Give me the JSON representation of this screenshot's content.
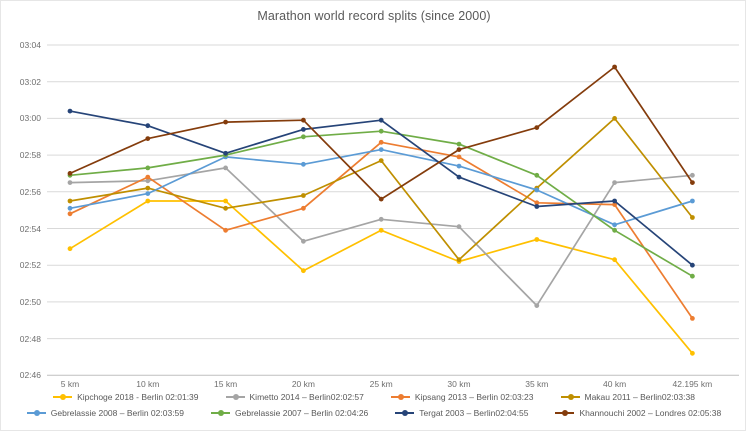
{
  "title": "Marathon world record splits (since 2000)",
  "chart_data": {
    "type": "line",
    "title": "Marathon world record splits (since 2000)",
    "xlabel": "",
    "ylabel": "",
    "y_unit": "mm:ss pace per km",
    "grid": "horizontal",
    "legend_position": "bottom",
    "categories": [
      "5 km",
      "10 km",
      "15 km",
      "20 km",
      "25 km",
      "30 km",
      "35 km",
      "40 km",
      "42.195 km"
    ],
    "y_axis": {
      "tick_labels_top_to_bottom": [
        "03:04",
        "03:02",
        "03:00",
        "02:58",
        "02:56",
        "02:54",
        "02:52",
        "02:50",
        "02:48",
        "02:46"
      ],
      "min_seconds": 166,
      "max_seconds": 184,
      "step_seconds": 2
    },
    "series": [
      {
        "name": "Kipchoge 2018",
        "legend_label": "Kipchoge 2018 - Berlin 02:01:39",
        "color": "#FFC000",
        "values_seconds": [
          172.9,
          175.5,
          175.5,
          171.7,
          173.9,
          172.2,
          173.4,
          172.3,
          167.2
        ],
        "values_mmss": [
          "02:52.9",
          "02:55.5",
          "02:55.5",
          "02:51.7",
          "02:53.9",
          "02:52.2",
          "02:53.4",
          "02:52.3",
          "02:47.2"
        ]
      },
      {
        "name": "Kimetto 2014",
        "legend_label": "Kimetto 2014 – Berlin02:02:57",
        "color": "#A5A5A5",
        "values_seconds": [
          176.5,
          176.6,
          177.3,
          173.3,
          174.5,
          174.1,
          169.8,
          176.5,
          176.9
        ],
        "values_mmss": [
          "02:56.5",
          "02:56.6",
          "02:57.3",
          "02:53.3",
          "02:54.5",
          "02:54.1",
          "02:49.8",
          "02:56.5",
          "02:56.9"
        ]
      },
      {
        "name": "Kipsang 2013",
        "legend_label": "Kipsang 2013 – Berlin 02:03:23",
        "color": "#ED7D31",
        "values_seconds": [
          174.8,
          176.8,
          173.9,
          175.1,
          178.7,
          177.9,
          175.4,
          175.3,
          169.1
        ],
        "values_mmss": [
          "02:54.8",
          "02:56.8",
          "02:53.9",
          "02:55.1",
          "02:58.7",
          "02:57.9",
          "02:55.4",
          "02:55.3",
          "02:49.1"
        ]
      },
      {
        "name": "Makau 2011",
        "legend_label": "Makau 2011 – Berlin02:03:38",
        "color": "#BF8F00",
        "values_seconds": [
          175.5,
          176.2,
          175.1,
          175.8,
          177.7,
          172.3,
          176.2,
          180.0,
          174.6
        ],
        "values_mmss": [
          "02:55.5",
          "02:56.2",
          "02:55.1",
          "02:55.8",
          "02:57.7",
          "02:52.3",
          "02:56.2",
          "03:00.0",
          "02:54.6"
        ]
      },
      {
        "name": "Gebrelassie 2008",
        "legend_label": "Gebrelassie 2008 – Berlin 02:03:59",
        "color": "#5B9BD5",
        "values_seconds": [
          175.1,
          175.9,
          177.9,
          177.5,
          178.3,
          177.4,
          176.1,
          174.2,
          175.5
        ],
        "values_mmss": [
          "02:55.1",
          "02:55.9",
          "02:57.9",
          "02:57.5",
          "02:58.3",
          "02:57.4",
          "02:56.1",
          "02:54.2",
          "02:55.5"
        ]
      },
      {
        "name": "Gebrelassie 2007",
        "legend_label": "Gebrelassie 2007 – Berlin 02:04:26",
        "color": "#70AD47",
        "values_seconds": [
          176.9,
          177.3,
          178.0,
          179.0,
          179.3,
          178.6,
          176.9,
          173.9,
          171.4
        ],
        "values_mmss": [
          "02:56.9",
          "02:57.3",
          "02:58.0",
          "02:59.0",
          "02:59.3",
          "02:58.6",
          "02:56.9",
          "02:53.9",
          "02:51.4"
        ]
      },
      {
        "name": "Tergat 2003",
        "legend_label": "Tergat 2003 – Berlin02:04:55",
        "color": "#264478",
        "values_seconds": [
          180.4,
          179.6,
          178.1,
          179.4,
          179.9,
          176.8,
          175.2,
          175.5,
          172.0
        ],
        "values_mmss": [
          "03:00.4",
          "02:59.6",
          "02:58.1",
          "02:59.4",
          "02:59.9",
          "02:56.8",
          "02:55.2",
          "02:55.5",
          "02:52.0"
        ]
      },
      {
        "name": "Khannouchi 2002",
        "legend_label": "Khannouchi 2002 – Londres 02:05:38",
        "color": "#843C0C",
        "values_seconds": [
          177.0,
          178.9,
          179.8,
          179.9,
          175.6,
          178.3,
          179.5,
          182.8,
          176.5
        ],
        "values_mmss": [
          "02:57.0",
          "02:58.9",
          "02:59.8",
          "02:59.9",
          "02:55.6",
          "02:58.3",
          "02:59.5",
          "03:02.8",
          "02:56.5"
        ]
      }
    ]
  }
}
